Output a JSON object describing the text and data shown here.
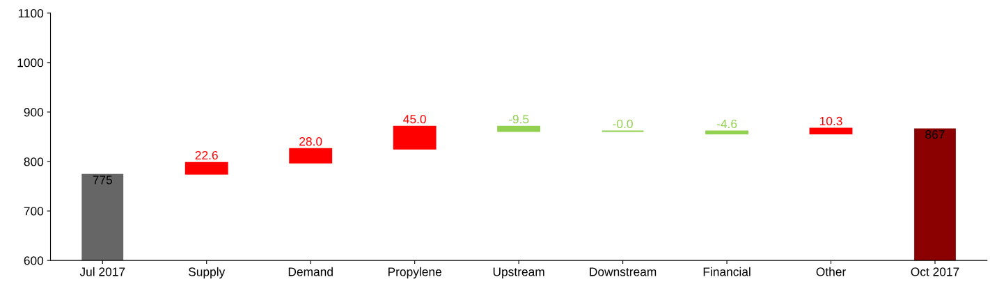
{
  "chart_data": {
    "type": "bar",
    "categories": [
      "Jul 2017",
      "Supply",
      "Demand",
      "Propylene",
      "Upstream",
      "Downstream",
      "Financial",
      "Other",
      "Oct 2017"
    ],
    "values": [
      775,
      22.6,
      28.0,
      45.0,
      -9.5,
      -0.0,
      -4.6,
      10.3,
      867
    ],
    "base": [
      null,
      775,
      797.6,
      825.6,
      870.6,
      861.1,
      861.1,
      856.5,
      null
    ],
    "colors": [
      "#666666",
      "#ff0000",
      "#ff0000",
      "#ff0000",
      "#92d050",
      "#92d050",
      "#92d050",
      "#ff0000",
      "#8b0000"
    ],
    "value_labels": [
      "775",
      "22.6",
      "28.0",
      "45.0",
      "-9.5",
      "-0.0",
      "-4.6",
      "10.3",
      "867"
    ],
    "ylim": [
      600,
      1100
    ],
    "yticks": [
      600,
      700,
      800,
      900,
      1000,
      1100
    ],
    "grid": false
  }
}
